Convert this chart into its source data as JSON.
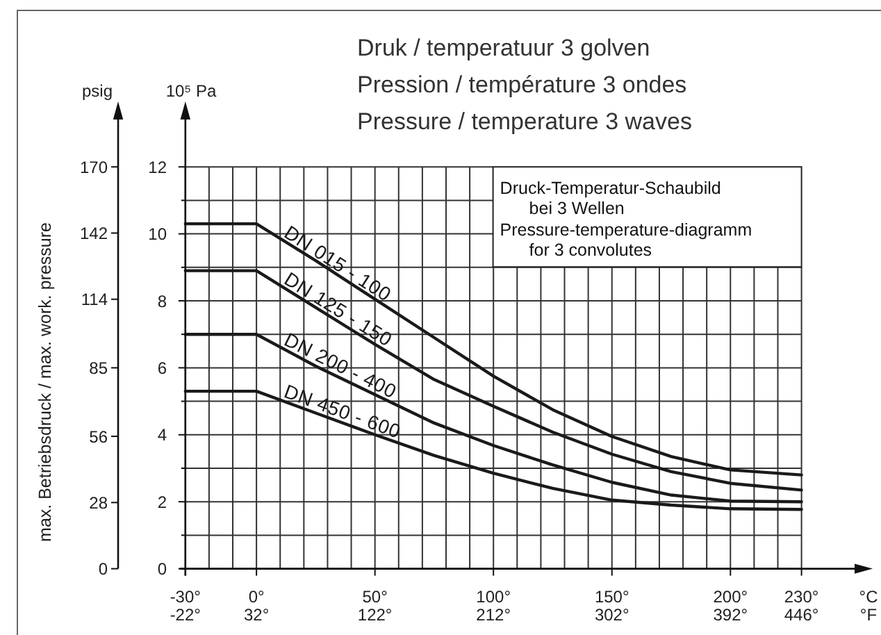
{
  "chart_data": {
    "type": "line",
    "title": "Druk / temperatuur 3 golven\nPression / température 3 ondes\nPressure / temperature 3 waves",
    "xlabel": "°C",
    "x2label": "°F",
    "ylabel": "10⁵ Pa",
    "y2label": "psig",
    "annotations": [
      "max. Betriebsdruck / max. work. pressure",
      "Druck-Temperatur-Schaubild\nbei 3 Wellen",
      "Pressure-temperature-diagramm\nfor 3 convolutes"
    ],
    "x": [
      -30,
      0,
      25,
      50,
      75,
      100,
      125,
      150,
      175,
      200,
      230
    ],
    "series": [
      {
        "name": "DN 015 - 100",
        "color": "#1a1a1a",
        "values": [
          10.3,
          10.3,
          9.2,
          8.05,
          6.9,
          5.75,
          4.75,
          3.95,
          3.35,
          2.95,
          2.8
        ]
      },
      {
        "name": "DN 125 - 150",
        "color": "#1a1a1a",
        "values": [
          8.9,
          8.9,
          7.8,
          6.7,
          5.65,
          4.85,
          4.08,
          3.42,
          2.9,
          2.55,
          2.35
        ]
      },
      {
        "name": "DN 200 - 400",
        "color": "#1a1a1a",
        "values": [
          7.0,
          7.0,
          6.05,
          5.2,
          4.35,
          3.68,
          3.1,
          2.58,
          2.2,
          2.02,
          2.0
        ]
      },
      {
        "name": "DN 450 - 600",
        "color": "#1a1a1a",
        "values": [
          5.3,
          5.3,
          4.65,
          4.0,
          3.38,
          2.85,
          2.4,
          2.05,
          1.9,
          1.79,
          1.77
        ]
      }
    ],
    "xlim": [
      -30,
      230
    ],
    "xticks": [
      {
        "value": -30,
        "label": "-30°"
      },
      {
        "value": -20,
        "label": null
      },
      {
        "value": -10,
        "label": null
      },
      {
        "value": 0,
        "label": "0°"
      },
      {
        "value": 10,
        "label": null
      },
      {
        "value": 20,
        "label": null
      },
      {
        "value": 30,
        "label": null
      },
      {
        "value": 40,
        "label": null
      },
      {
        "value": 50,
        "label": "50°"
      },
      {
        "value": 60,
        "label": null
      },
      {
        "value": 70,
        "label": null
      },
      {
        "value": 80,
        "label": null
      },
      {
        "value": 90,
        "label": null
      },
      {
        "value": 100,
        "label": "100°"
      },
      {
        "value": 110,
        "label": null
      },
      {
        "value": 120,
        "label": null
      },
      {
        "value": 130,
        "label": null
      },
      {
        "value": 140,
        "label": null
      },
      {
        "value": 150,
        "label": "150°"
      },
      {
        "value": 160,
        "label": null
      },
      {
        "value": 170,
        "label": null
      },
      {
        "value": 180,
        "label": null
      },
      {
        "value": 190,
        "label": null
      },
      {
        "value": 200,
        "label": "200°"
      },
      {
        "value": 210,
        "label": null
      },
      {
        "value": 220,
        "label": null
      },
      {
        "value": 230,
        "label": "230°"
      }
    ],
    "x2lim": [
      -22,
      446
    ],
    "x2ticks": [
      {
        "value": -22,
        "label": "-22°"
      },
      {
        "value": 32,
        "label": "32°"
      },
      {
        "value": 122,
        "label": "122°"
      },
      {
        "value": 212,
        "label": "212°"
      },
      {
        "value": 302,
        "label": "302°"
      },
      {
        "value": 392,
        "label": "392°"
      },
      {
        "value": 446,
        "label": "446°"
      }
    ],
    "ylim": [
      0,
      12
    ],
    "yticks": [
      0,
      {
        "value": 1,
        "label": null
      },
      2,
      {
        "value": 3,
        "label": null
      },
      4,
      {
        "value": 5,
        "label": null
      },
      6,
      {
        "value": 7,
        "label": null
      },
      8,
      {
        "value": 9,
        "label": null
      },
      10,
      {
        "value": 11,
        "label": null
      },
      12
    ],
    "y2lim": [
      0,
      170
    ],
    "y2ticks": [
      0,
      28,
      56,
      85,
      114,
      142,
      170
    ],
    "grid": true,
    "line_style": "solid"
  }
}
